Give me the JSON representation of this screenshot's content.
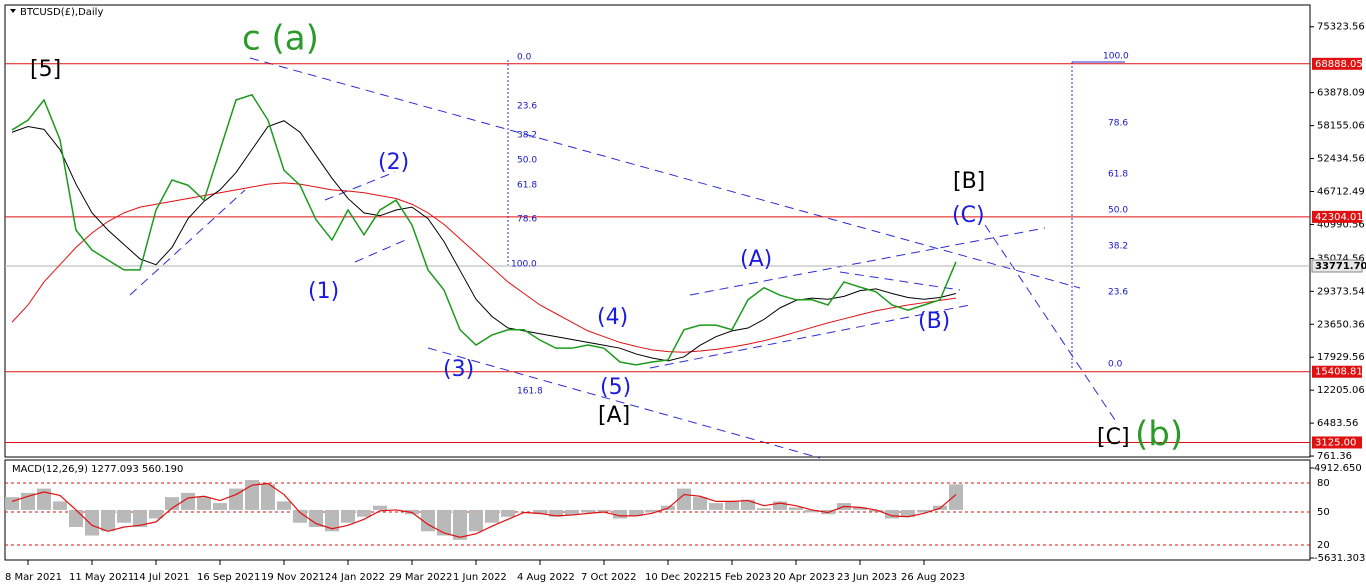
{
  "chart_data": [
    {
      "type": "line",
      "title": "BTCUSD(£),Daily",
      "categories": [
        null,
        "8 Mar 2021",
        null,
        null,
        null,
        "11 May 2021",
        null,
        null,
        null,
        "14 Jul 2021",
        null,
        null,
        null,
        "16 Sep 2021",
        null,
        null,
        null,
        "19 Nov 2021",
        null,
        null,
        null,
        "24 Jan 2022",
        null,
        null,
        null,
        "29 Mar 2022",
        null,
        null,
        null,
        "1 Jun 2022",
        null,
        null,
        null,
        "4 Aug 2022",
        null,
        null,
        null,
        "7 Oct 2022",
        null,
        null,
        null,
        "10 Dec 2022",
        null,
        null,
        null,
        "15 Feb 2023",
        null,
        null,
        null,
        "20 Apr 2023",
        null,
        null,
        null,
        "23 Jun 2023",
        null,
        null,
        null,
        "26 Aug 2023",
        null,
        null
      ],
      "series": [
        {
          "color": "#1c9a1c",
          "values": [
            57400,
            59100,
            62600,
            55700,
            40000,
            36550,
            34800,
            33100,
            33100,
            43500,
            48700,
            47800,
            45200,
            53900,
            62600,
            63500,
            59100,
            50400,
            47800,
            41800,
            38300,
            43500,
            39200,
            43500,
            45200,
            40900,
            33100,
            29600,
            22700,
            20050,
            21800,
            22700,
            22700,
            20900,
            19500,
            19500,
            20050,
            19500,
            17100,
            16600,
            17100,
            17450,
            22700,
            23500,
            23500,
            22700,
            27900,
            30000,
            28700,
            27900,
            27900,
            27000,
            31000,
            30100,
            29300,
            27000,
            26100,
            27000,
            27900,
            34500
          ]
        },
        {
          "color": "#000000",
          "values": [
            57000,
            58000,
            57500,
            54000,
            48000,
            43000,
            40000,
            37500,
            35000,
            34000,
            37000,
            42000,
            45000,
            47000,
            50000,
            54000,
            58000,
            59000,
            57000,
            53000,
            49000,
            45500,
            43000,
            42500,
            43500,
            44000,
            42000,
            38000,
            33000,
            28000,
            25000,
            23000,
            22500,
            22000,
            21500,
            21000,
            20500,
            20000,
            19500,
            18500,
            17800,
            17300,
            18000,
            20000,
            21500,
            22500,
            23000,
            24500,
            26500,
            27800,
            28200,
            28000,
            28500,
            29500,
            29800,
            29000,
            28300,
            28000,
            28300,
            29000
          ]
        },
        {
          "color": "#e01010",
          "values": [
            24000,
            27000,
            31000,
            34000,
            37000,
            39500,
            41500,
            43000,
            44000,
            44500,
            45000,
            45500,
            46000,
            46500,
            47000,
            47500,
            48000,
            48200,
            48000,
            47500,
            47000,
            46800,
            46500,
            46000,
            45500,
            44500,
            43000,
            41000,
            38500,
            36000,
            33500,
            31000,
            29000,
            27000,
            25500,
            24000,
            22500,
            21500,
            20500,
            19800,
            19200,
            18900,
            18800,
            19000,
            19300,
            19700,
            20200,
            20800,
            21500,
            22300,
            23100,
            23900,
            24600,
            25300,
            26000,
            26500,
            27000,
            27400,
            27800,
            28200
          ]
        }
      ],
      "ylim": [
        600,
        79100
      ],
      "yticks": [
        75323.56,
        63878.09,
        58155.06,
        52434.56,
        46712.49,
        40990.56,
        35074.56,
        29373.54,
        23650.36,
        17929.56,
        12205.06,
        6483.56,
        761.36
      ],
      "levels": [
        68888.05,
        42304.01,
        15408.81,
        {
          "value": 3125,
          "label": "3125.00"
        }
      ],
      "level_color": "#e01010",
      "last_price": {
        "value": 33771.7,
        "label": "33771.70"
      },
      "annotations": [
        {
          "text": "[5]",
          "color": "#000000"
        },
        {
          "text": "c (a)",
          "color": "#2a9a2a"
        },
        {
          "text": "(2)",
          "color": "#1a1ae0"
        },
        {
          "text": "(1)",
          "color": "#1a1ae0"
        },
        {
          "text": "(3)",
          "color": "#1a1ae0"
        },
        {
          "text": "(4)",
          "color": "#1a1ae0"
        },
        {
          "text": "(5)",
          "color": "#1a1ae0"
        },
        {
          "text": "[A]",
          "color": "#000000"
        },
        {
          "text": "(A)",
          "color": "#1a1ae0"
        },
        {
          "text": "[B]",
          "color": "#000000"
        },
        {
          "text": "(C)",
          "color": "#1a1ae0"
        },
        {
          "text": "(B)",
          "color": "#1a1ae0"
        },
        {
          "text": "[C]",
          "color": "#000000"
        },
        {
          "text": "(b)",
          "color": "#2a9a2a"
        }
      ],
      "fib_left": [
        "0.0",
        "23.6",
        "38.2",
        "50.0",
        "61.8",
        "78.6",
        "100.0",
        "161.8"
      ],
      "fib_right": [
        "100.0",
        "78.6",
        "61.8",
        "50.0",
        "38.2",
        "23.6",
        "0.0"
      ]
    },
    {
      "type": "macd",
      "title": "MACD(12,26,9) 1277.093 560.190",
      "series": [
        {
          "color": "#b9b9b9",
          "values": [
            1500,
            2000,
            2500,
            1000,
            -2000,
            -3000,
            -2500,
            -1500,
            -2000,
            -1000,
            1500,
            2000,
            1500,
            800,
            2500,
            3500,
            3000,
            1000,
            -1500,
            -2000,
            -2500,
            -1500,
            -800,
            500,
            0,
            -500,
            -2500,
            -3000,
            -3500,
            -2500,
            -1500,
            -800,
            0,
            -500,
            -800,
            -600,
            -300,
            -200,
            -1000,
            -700,
            -300,
            500,
            2500,
            1500,
            800,
            1000,
            1200,
            200,
            1000,
            300,
            -300,
            -500,
            800,
            300,
            -200,
            -1000,
            -800,
            -300,
            500,
            3000
          ]
        },
        {
          "color": "#e01010",
          "values": [
            1000,
            1600,
            2100,
            1700,
            0,
            -1800,
            -2500,
            -2000,
            -1800,
            -1400,
            200,
            1400,
            1600,
            1100,
            1800,
            2900,
            3100,
            1800,
            -300,
            -1600,
            -2200,
            -1800,
            -1100,
            -100,
            0,
            -300,
            -1700,
            -2700,
            -3200,
            -2800,
            -1900,
            -1100,
            -300,
            -400,
            -700,
            -600,
            -400,
            -250,
            -700,
            -700,
            -400,
            200,
            1800,
            1600,
            1000,
            1000,
            1100,
            500,
            800,
            500,
            0,
            -300,
            400,
            300,
            0,
            -700,
            -800,
            -400,
            200,
            1800
          ]
        }
      ],
      "ylim": [
        -5631.303,
        4912.65
      ],
      "yticks": [
        {
          "value": 4912.65,
          "label": "4912.650"
        },
        {
          "value": -5631.303,
          "label": "-5631.303"
        }
      ],
      "level_labels": [
        "80",
        "50",
        "20"
      ]
    }
  ]
}
